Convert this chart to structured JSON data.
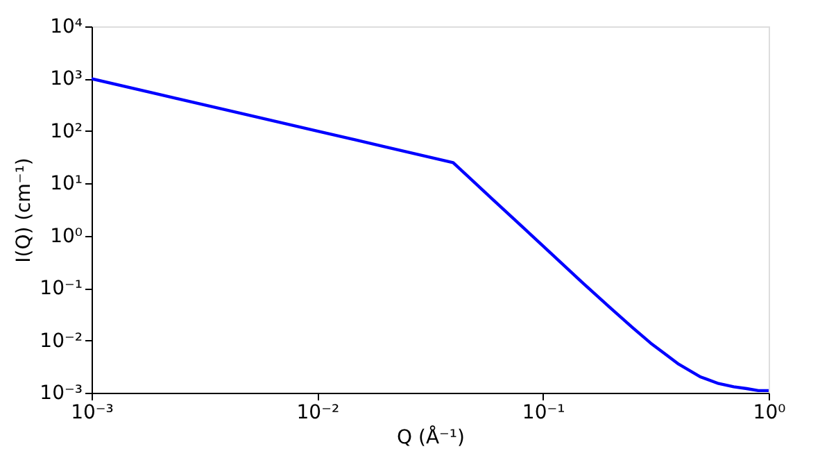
{
  "chart_data": {
    "type": "line",
    "xlabel": "Q (Å⁻¹)",
    "ylabel": "I(Q) (cm⁻¹)",
    "log": "xy",
    "grid": false,
    "legend": false,
    "marker": "none",
    "line_style": "solid",
    "x": [
      0.001,
      0.002,
      0.005,
      0.01,
      0.02,
      0.04,
      0.06,
      0.08,
      0.1,
      0.15,
      0.2,
      0.25,
      0.3,
      0.4,
      0.5,
      0.6,
      0.7,
      0.8,
      0.9,
      1.0
    ],
    "series": [
      {
        "color": "#0000ff",
        "values": [
          1000,
          500,
          200,
          100,
          50,
          25,
          4.9,
          1.56,
          0.64,
          0.126,
          0.041,
          0.0174,
          0.0089,
          0.0035,
          0.002,
          0.0015,
          0.0013,
          0.0012,
          0.0011,
          0.0011
        ]
      }
    ],
    "xlim": [
      0.001,
      1
    ],
    "ylim": [
      0.001,
      10000
    ],
    "xticks": [
      {
        "value": 0.001,
        "label": "10⁻³"
      },
      {
        "value": 0.01,
        "label": "10⁻²"
      },
      {
        "value": 0.1,
        "label": "10⁻¹"
      },
      {
        "value": 1,
        "label": "10⁰"
      }
    ],
    "yticks": [
      {
        "value": 0.001,
        "label": "10⁻³"
      },
      {
        "value": 0.01,
        "label": "10⁻²"
      },
      {
        "value": 0.1,
        "label": "10⁻¹"
      },
      {
        "value": 1,
        "label": "10⁰"
      },
      {
        "value": 10,
        "label": "10¹"
      },
      {
        "value": 100,
        "label": "10²"
      },
      {
        "value": 1000,
        "label": "10³"
      },
      {
        "value": 10000,
        "label": "10⁴"
      }
    ]
  }
}
